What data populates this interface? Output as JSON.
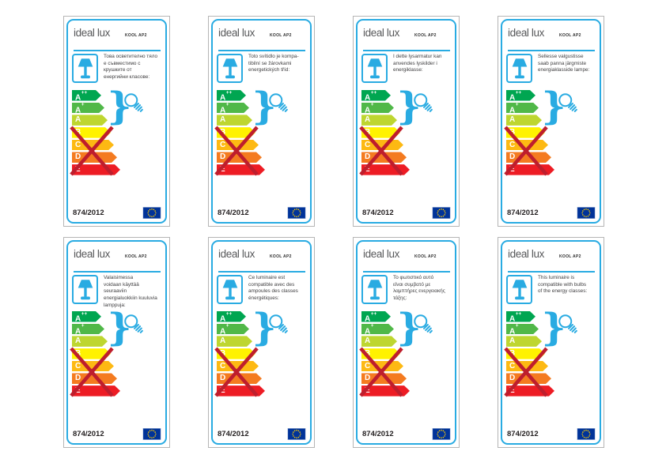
{
  "shared": {
    "brand": "ideal lux",
    "model": "KOOL AP2",
    "regulation": "874/2012",
    "brace_glyph": "}",
    "colors": {
      "accent_blue": "#29abe2",
      "cross_red": "#be1e2d",
      "eu_flag_blue": "#003399",
      "eu_flag_stars": "#ffcc00",
      "logo_gray": "#58595b",
      "text_dark": "#414042"
    },
    "icons": {
      "lamp": "table-lamp-icon",
      "bulb": "light-bulb-icon",
      "brace": "brace-group-icon",
      "cross": "cross-out-icon",
      "flag": "eu-flag-icon"
    },
    "energy_classes": [
      {
        "label": "A++",
        "color": "#00a651",
        "compatible": true
      },
      {
        "label": "A+",
        "color": "#50b848",
        "compatible": true
      },
      {
        "label": "A",
        "color": "#bed630",
        "compatible": true
      },
      {
        "label": "B",
        "color": "#fff200",
        "compatible": false
      },
      {
        "label": "C",
        "color": "#fdb913",
        "compatible": false
      },
      {
        "label": "D",
        "color": "#f47b20",
        "compatible": false
      },
      {
        "label": "E",
        "color": "#ed1c24",
        "compatible": false
      }
    ]
  },
  "labels": [
    {
      "description_lines": [
        "Това осветително тяло",
        "е съвместимо с",
        "крушките от",
        "енергийни класове:"
      ]
    },
    {
      "description_lines": [
        "Toto svítidlo je kompa-",
        "tibilní se žárovkami",
        "energetických tříd:"
      ]
    },
    {
      "description_lines": [
        "I dette lysarmatur kan",
        "anvendes lyskilder i",
        "energiklasse:"
      ]
    },
    {
      "description_lines": [
        "Sellesse valgustisse",
        "saab panna järgmiste",
        "energiaklasside lampe:"
      ]
    },
    {
      "description_lines": [
        "Valaisimessa",
        "voidaan käyttää",
        "seuraaviin",
        "energialuokkiin kuuluvia",
        "lamppuja:"
      ]
    },
    {
      "description_lines": [
        "Ce luminaire est",
        "compatible avec des",
        "ampoules des classes",
        "énergétiques:"
      ]
    },
    {
      "description_lines": [
        "Το φωτιστικό αυτό",
        "είναι συμβατό με",
        "λαμπτήρες ενεργειακής",
        "τάξης:"
      ]
    },
    {
      "description_lines": [
        "This luminaire is",
        "compatible with bulbs",
        "of the energy classes:"
      ]
    }
  ]
}
